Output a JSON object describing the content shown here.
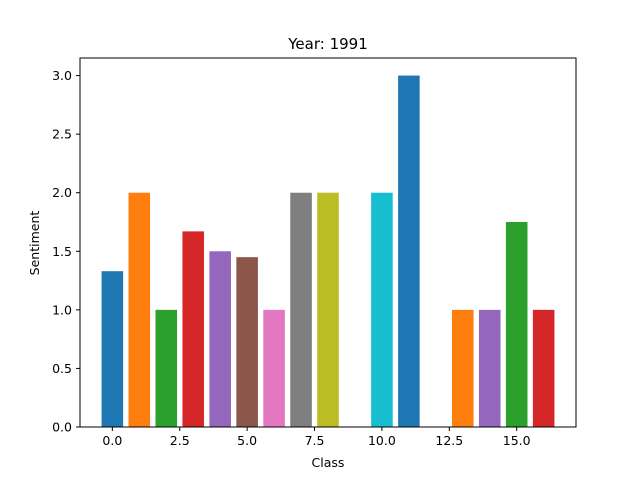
{
  "chart_data": {
    "type": "bar",
    "title": "Year: 1991",
    "xlabel": "Class",
    "ylabel": "Sentiment",
    "xlim": [
      -1.2,
      17.2
    ],
    "ylim": [
      0,
      3.15
    ],
    "x_ticks": [
      0,
      2.5,
      5,
      7.5,
      10,
      12.5,
      15
    ],
    "x_tick_labels": [
      "0.0",
      "2.5",
      "5.0",
      "7.5",
      "10.0",
      "12.5",
      "15.0"
    ],
    "y_ticks": [
      0,
      0.5,
      1,
      1.5,
      2,
      2.5,
      3
    ],
    "y_tick_labels": [
      "0.0",
      "0.5",
      "1.0",
      "1.5",
      "2.0",
      "2.5",
      "3.0"
    ],
    "grid": false,
    "bar_width": 0.8,
    "bars": [
      {
        "x": 0,
        "value": 1.33,
        "color": "#1f77b4"
      },
      {
        "x": 1,
        "value": 2.0,
        "color": "#ff7f0e"
      },
      {
        "x": 2,
        "value": 1.0,
        "color": "#2ca02c"
      },
      {
        "x": 3,
        "value": 1.67,
        "color": "#d62728"
      },
      {
        "x": 4,
        "value": 1.5,
        "color": "#9467bd"
      },
      {
        "x": 5,
        "value": 1.45,
        "color": "#8c564b"
      },
      {
        "x": 6,
        "value": 1.0,
        "color": "#e377c2"
      },
      {
        "x": 7,
        "value": 2.0,
        "color": "#7f7f7f"
      },
      {
        "x": 8,
        "value": 2.0,
        "color": "#bcbd22"
      },
      {
        "x": 10,
        "value": 2.0,
        "color": "#17becf"
      },
      {
        "x": 11,
        "value": 3.0,
        "color": "#1f77b4"
      },
      {
        "x": 13,
        "value": 1.0,
        "color": "#ff7f0e"
      },
      {
        "x": 14,
        "value": 1.0,
        "color": "#9467bd"
      },
      {
        "x": 15,
        "value": 1.75,
        "color": "#2ca02c"
      },
      {
        "x": 16,
        "value": 1.0,
        "color": "#d62728"
      }
    ]
  }
}
